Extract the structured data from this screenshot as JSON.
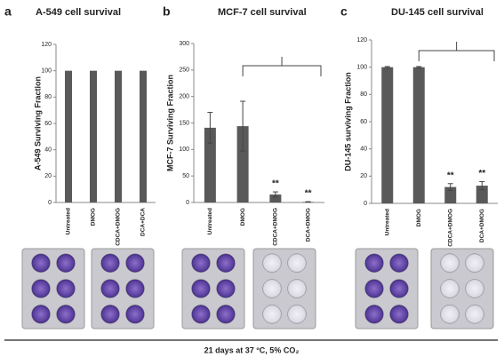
{
  "chart_data": [
    {
      "type": "bar",
      "panel": "a",
      "title": "A-549 cell survival",
      "y_label": "A-549 Surviving Fraction",
      "categories": [
        "Untreated",
        "DMOG",
        "CDCA+DMOG",
        "DCA+DCA"
      ],
      "values": [
        100,
        100,
        100,
        100
      ],
      "color": "#595959",
      "ylim": [
        0,
        120
      ],
      "yticks": [
        0,
        20,
        40,
        60,
        80,
        100,
        120
      ]
    },
    {
      "type": "bar",
      "panel": "b",
      "title": "MCF-7 cell survival",
      "y_label": "MCF-7 Surviving Fraction",
      "categories": [
        "Untreated",
        "DMOG",
        "CDCA+DMOG",
        "DCA+DMOG"
      ],
      "values": [
        141,
        144,
        15,
        1
      ],
      "errors": [
        29,
        47,
        5,
        0.5
      ],
      "markers": [
        null,
        null,
        "**",
        "**"
      ],
      "color": "#595959",
      "ylim": [
        0,
        300
      ],
      "yticks": [
        0,
        50,
        100,
        150,
        200,
        250,
        300
      ]
    },
    {
      "type": "bar",
      "panel": "c",
      "title": "DU-145 cell survival",
      "y_label": "DU-145 surviving Fraction",
      "categories": [
        "Untreated",
        "DMOG",
        "CDCA+DMOG",
        "DCA+DMOG"
      ],
      "values": [
        100,
        100,
        12,
        13
      ],
      "errors": [
        0.5,
        0.5,
        2.5,
        3
      ],
      "markers": [
        null,
        null,
        "**",
        "**"
      ],
      "color": "#595959",
      "ylim": [
        0,
        120
      ],
      "yticks": [
        0,
        20,
        40,
        60,
        80,
        100,
        120
      ]
    }
  ],
  "footer": "21 days at 37 °C, 5% CO₂"
}
